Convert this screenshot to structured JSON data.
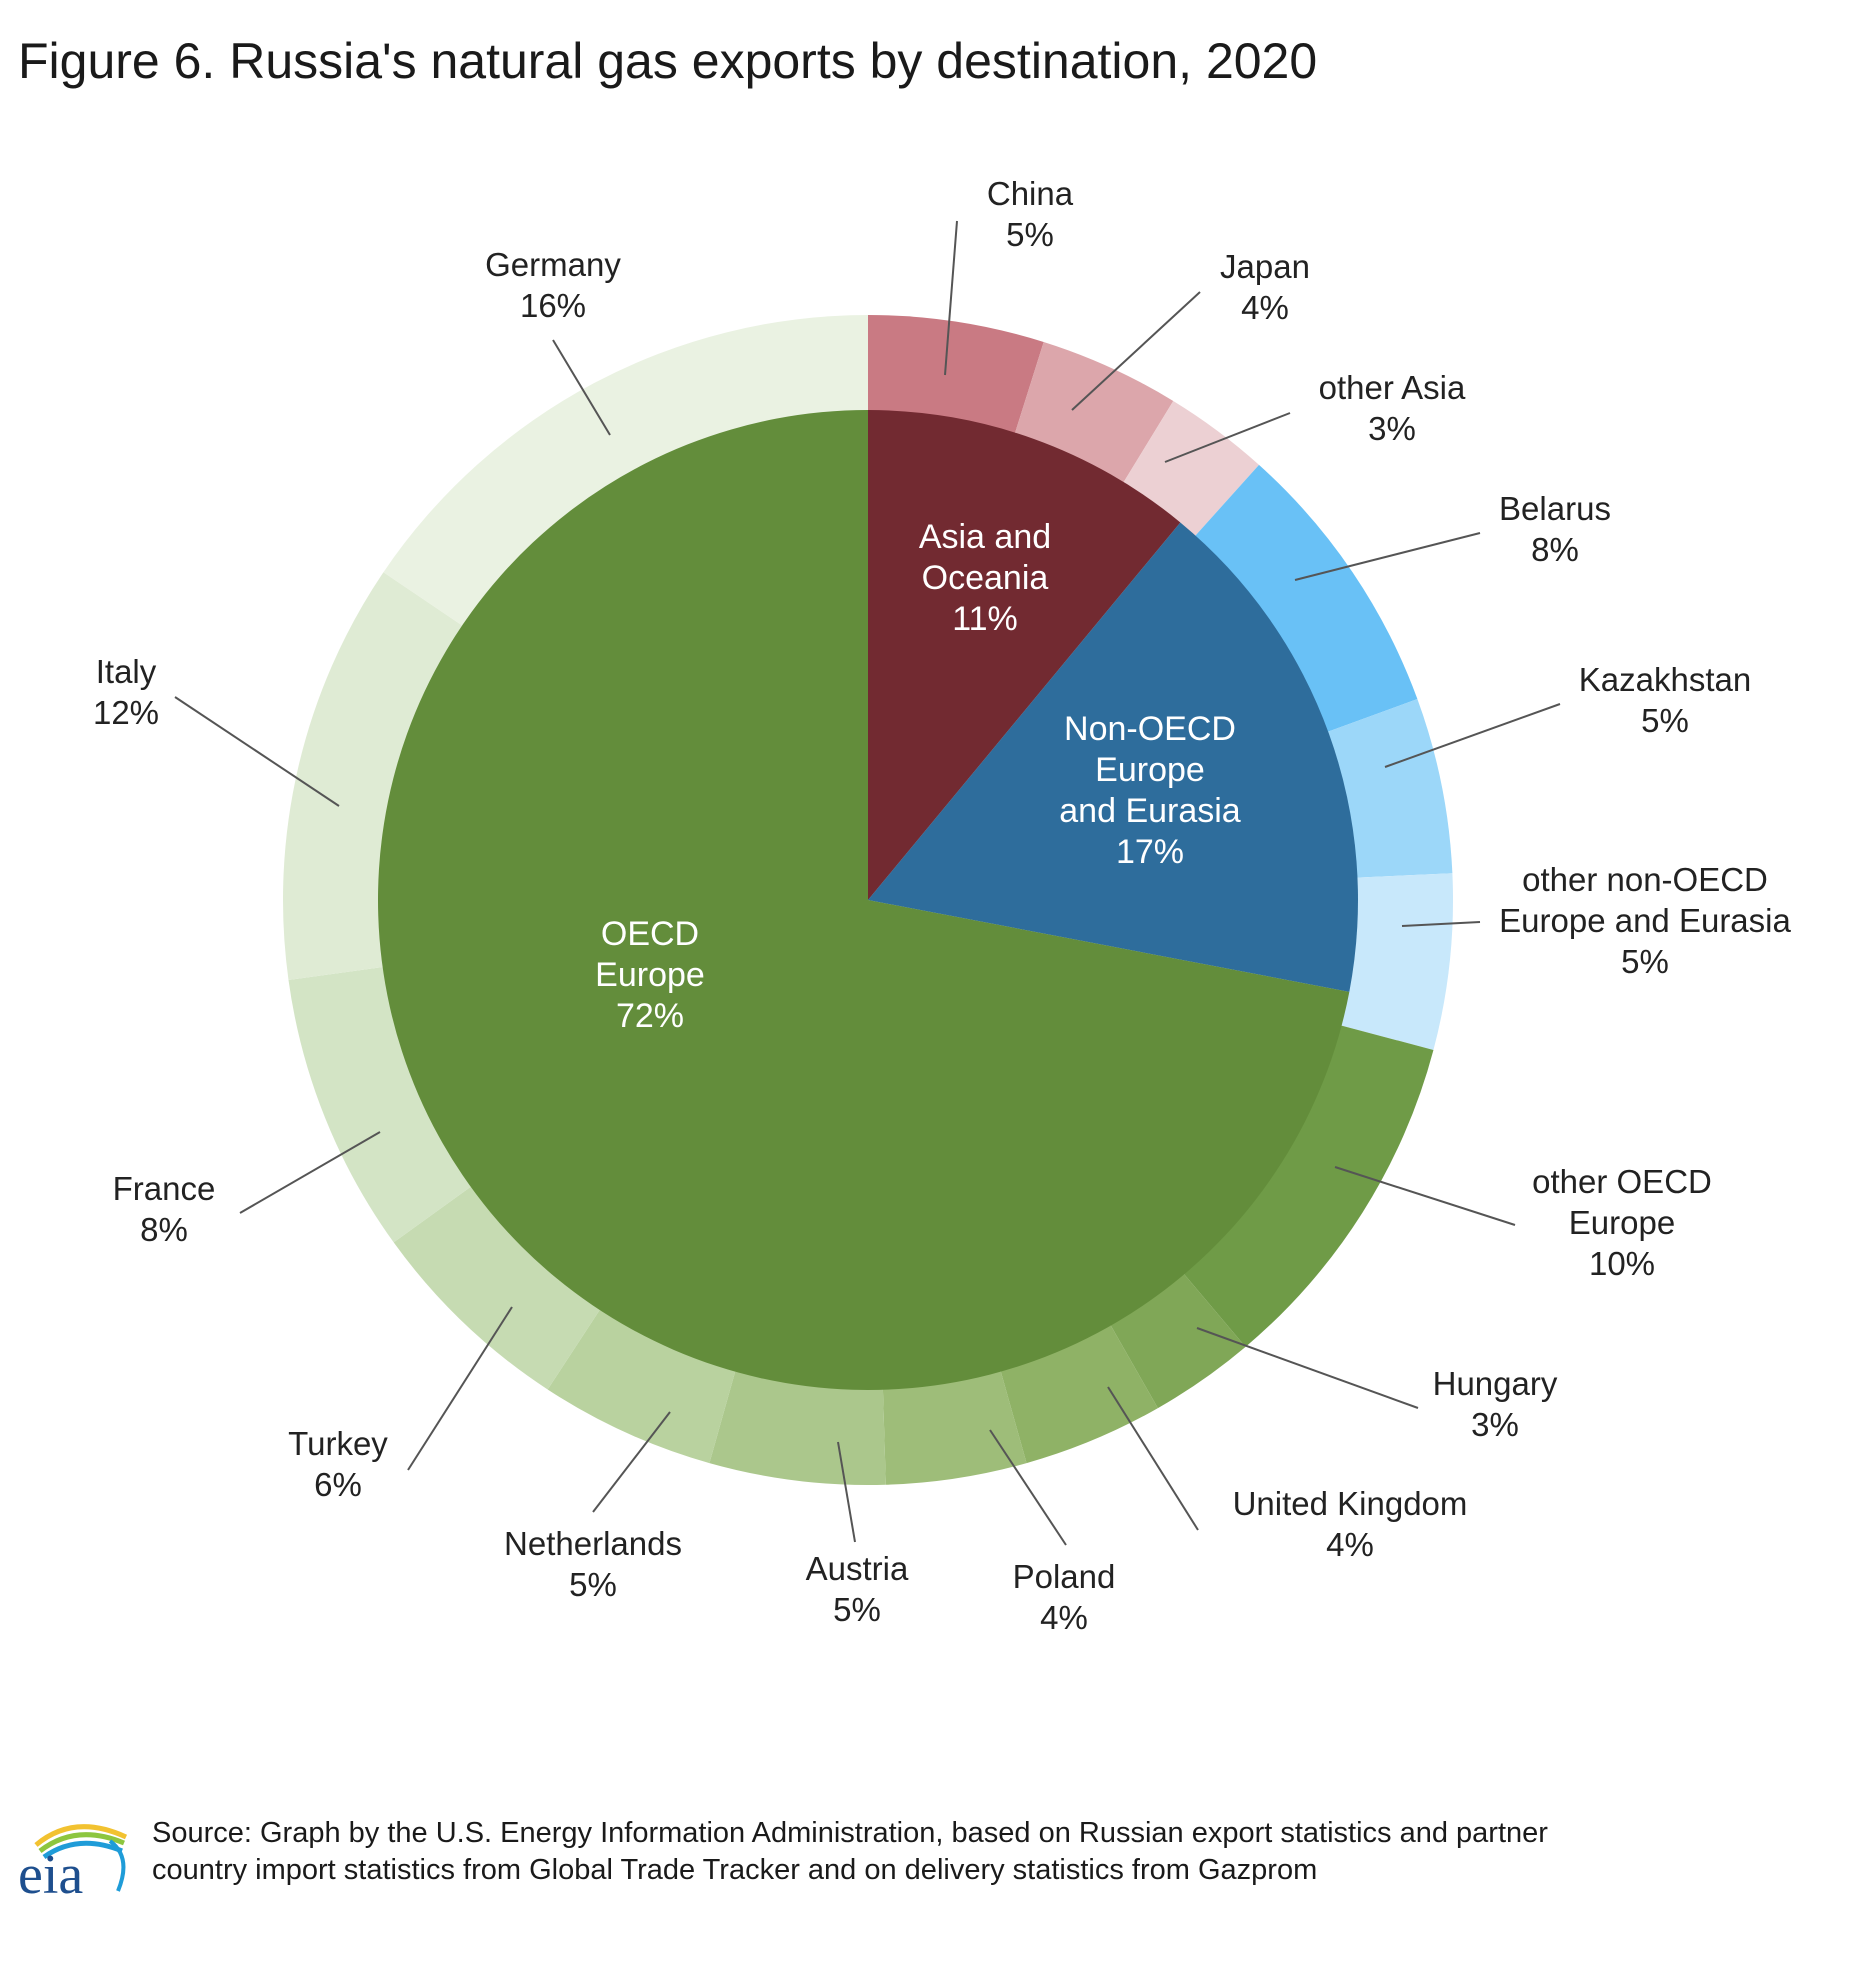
{
  "chart_data": {
    "type": "pie",
    "title": "Figure 6. Russia's natural gas exports by destination, 2020",
    "inner": [
      {
        "name": "Asia and Oceania",
        "label_lines": [
          "Asia and",
          "Oceania",
          "11%"
        ],
        "value": 11,
        "color": "#722a31"
      },
      {
        "name": "Non-OECD Europe and Eurasia",
        "label_lines": [
          "Non-OECD",
          "Europe",
          "and Eurasia",
          "17%"
        ],
        "value": 17,
        "color": "#2e6d9c"
      },
      {
        "name": "OECD Europe",
        "label_lines": [
          "OECD",
          "Europe",
          "72%"
        ],
        "value": 72,
        "color": "#638d3b"
      }
    ],
    "outer": [
      {
        "name": "China",
        "label_lines": [
          "China",
          "5%"
        ],
        "value": 5,
        "color": "#c97a83"
      },
      {
        "name": "Japan",
        "label_lines": [
          "Japan",
          "4%"
        ],
        "value": 4,
        "color": "#dca6ab"
      },
      {
        "name": "other Asia",
        "label_lines": [
          "other Asia",
          "3%"
        ],
        "value": 3,
        "color": "#ecd0d3"
      },
      {
        "name": "Belarus",
        "label_lines": [
          "Belarus",
          "8%"
        ],
        "value": 8,
        "color": "#69c1f6"
      },
      {
        "name": "Kazakhstan",
        "label_lines": [
          "Kazakhstan",
          "5%"
        ],
        "value": 5,
        "color": "#9cd7f9"
      },
      {
        "name": "other non-OECD Europe and Eurasia",
        "label_lines": [
          "other non-OECD",
          "Europe and Eurasia",
          "5%"
        ],
        "value": 5,
        "color": "#c8e8fb"
      },
      {
        "name": "other OECD Europe",
        "label_lines": [
          "other OECD",
          "Europe",
          "10%"
        ],
        "value": 10,
        "color": "#6f9b47"
      },
      {
        "name": "Hungary",
        "label_lines": [
          "Hungary",
          "3%"
        ],
        "value": 3,
        "color": "#80a757"
      },
      {
        "name": "United Kingdom",
        "label_lines": [
          "United Kingdom",
          "4%"
        ],
        "value": 4,
        "color": "#8fb266"
      },
      {
        "name": "Poland",
        "label_lines": [
          "Poland",
          "4%"
        ],
        "value": 4,
        "color": "#9ebd79"
      },
      {
        "name": "Austria",
        "label_lines": [
          "Austria",
          "5%"
        ],
        "value": 5,
        "color": "#abc78c"
      },
      {
        "name": "Netherlands",
        "label_lines": [
          "Netherlands",
          "5%"
        ],
        "value": 5,
        "color": "#b9d29f"
      },
      {
        "name": "Turkey",
        "label_lines": [
          "Turkey",
          "6%"
        ],
        "value": 6,
        "color": "#c6dbb2"
      },
      {
        "name": "France",
        "label_lines": [
          "France",
          "8%"
        ],
        "value": 8,
        "color": "#d3e4c5"
      },
      {
        "name": "Italy",
        "label_lines": [
          "Italy",
          "12%"
        ],
        "value": 12,
        "color": "#dfebd4"
      },
      {
        "name": "Germany",
        "label_lines": [
          "Germany",
          "16%"
        ],
        "value": 16,
        "color": "#eaf2e2"
      }
    ],
    "start_angle": "12 o'clock",
    "direction": "clockwise",
    "grid": false,
    "legend": "none"
  },
  "footer": {
    "logo_text": "eia",
    "source_line1": "Source: Graph by the U.S. Energy Information Administration, based on Russian export statistics and partner",
    "source_line2": "country import statistics from Global Trade Tracker and on delivery statistics from Gazprom"
  }
}
